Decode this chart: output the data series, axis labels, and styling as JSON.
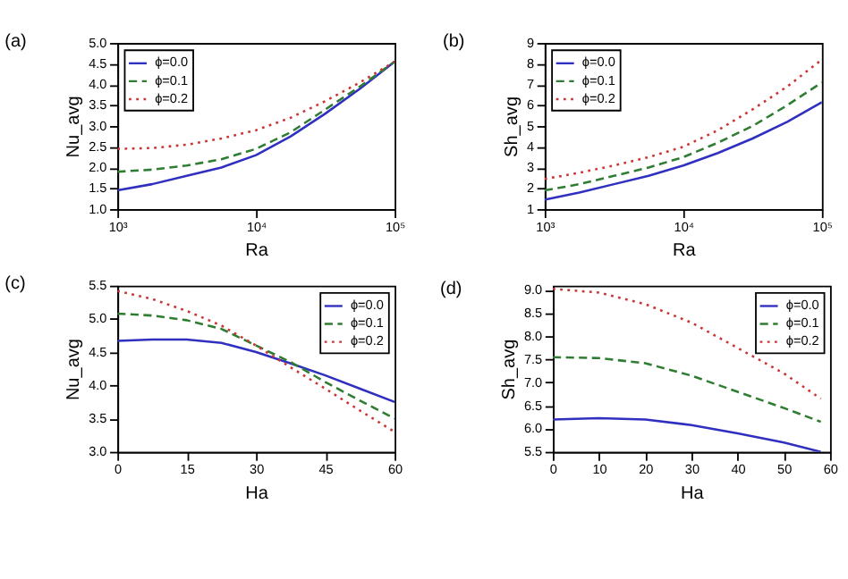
{
  "chart_data": [
    {
      "type": "line",
      "title": "(a)",
      "xlabel": "Ra",
      "ylabel": "Nu_avg",
      "log": "x",
      "xlim": [
        1000,
        100000
      ],
      "xticks": [
        {
          "value": 1000,
          "label": "10³"
        },
        {
          "value": 10000,
          "label": "10⁴"
        },
        {
          "value": 100000,
          "label": "10⁵"
        }
      ],
      "ylim": [
        1.0,
        5.0
      ],
      "yticks": [
        {
          "value": 1,
          "label": "1.0"
        },
        1.5,
        {
          "value": 2,
          "label": "2.0"
        },
        2.5,
        {
          "value": 3,
          "label": "3.0"
        },
        3.5,
        {
          "value": 4,
          "label": "4.0"
        },
        4.5,
        {
          "value": 5,
          "label": "5.0"
        }
      ],
      "legend": "top left",
      "grid": false,
      "x": [
        1000,
        1778,
        3162,
        5623,
        10000,
        17783,
        31623,
        56234,
        100000
      ],
      "series": [
        {
          "name": "ϕ=0.0",
          "color": "#3030c0",
          "line_style": "solid",
          "values": [
            1.45,
            1.6,
            1.8,
            2.0,
            2.3,
            2.75,
            3.3,
            3.9,
            4.55
          ]
        },
        {
          "name": "ϕ=0.1",
          "color": "#2e7d32",
          "line_style": "dashed",
          "values": [
            1.9,
            1.95,
            2.05,
            2.2,
            2.45,
            2.85,
            3.4,
            3.95,
            4.55
          ]
        },
        {
          "name": "ϕ=0.2",
          "color": "#cc3333",
          "line_style": "dotted",
          "values": [
            2.45,
            2.47,
            2.55,
            2.7,
            2.9,
            3.2,
            3.6,
            4.05,
            4.55
          ]
        }
      ]
    },
    {
      "type": "line",
      "title": "(b)",
      "xlabel": "Ra",
      "ylabel": "Sh_avg",
      "log": "x",
      "xlim": [
        1000,
        100000
      ],
      "xticks": [
        {
          "value": 1000,
          "label": "10³"
        },
        {
          "value": 10000,
          "label": "10⁴"
        },
        {
          "value": 100000,
          "label": "10⁵"
        }
      ],
      "ylim": [
        1,
        9
      ],
      "yticks": [
        1,
        2,
        3,
        4,
        5,
        6,
        7,
        8,
        9
      ],
      "legend": "top left",
      "grid": false,
      "x": [
        1000,
        1778,
        3162,
        5623,
        10000,
        17783,
        31623,
        56234,
        100000
      ],
      "series": [
        {
          "name": "ϕ=0.0",
          "color": "#3030c0",
          "line_style": "solid",
          "values": [
            1.45,
            1.8,
            2.2,
            2.6,
            3.1,
            3.7,
            4.4,
            5.2,
            6.15
          ]
        },
        {
          "name": "ϕ=0.1",
          "color": "#2e7d32",
          "line_style": "dashed",
          "values": [
            1.9,
            2.2,
            2.6,
            3.0,
            3.5,
            4.2,
            5.0,
            6.0,
            7.1
          ]
        },
        {
          "name": "ϕ=0.2",
          "color": "#cc3333",
          "line_style": "dotted",
          "values": [
            2.45,
            2.75,
            3.1,
            3.5,
            4.0,
            4.8,
            5.8,
            6.9,
            8.2
          ]
        }
      ]
    },
    {
      "type": "line",
      "title": "(c)",
      "xlabel": "Ha",
      "ylabel": "Nu_avg",
      "xlim": [
        0,
        60
      ],
      "xticks": [
        0,
        15,
        30,
        45,
        60
      ],
      "ylim": [
        3.0,
        5.5
      ],
      "yticks": [
        {
          "value": 3,
          "label": "3.0"
        },
        3.5,
        {
          "value": 4,
          "label": "4.0"
        },
        4.5,
        {
          "value": 5,
          "label": "5.0"
        },
        5.5
      ],
      "legend": "top right",
      "grid": false,
      "x": [
        0,
        7.5,
        15,
        22.5,
        30,
        37.5,
        45,
        52.5,
        60
      ],
      "series": [
        {
          "name": "ϕ=0.0",
          "color": "#3030c0",
          "line_style": "solid",
          "values": [
            4.67,
            4.69,
            4.69,
            4.64,
            4.5,
            4.33,
            4.15,
            3.95,
            3.75
          ]
        },
        {
          "name": "ϕ=0.1",
          "color": "#2e7d32",
          "line_style": "dashed",
          "values": [
            5.08,
            5.05,
            4.98,
            4.85,
            4.6,
            4.35,
            4.05,
            3.77,
            3.5
          ]
        },
        {
          "name": "ϕ=0.2",
          "color": "#cc3333",
          "line_style": "dotted",
          "values": [
            5.42,
            5.3,
            5.12,
            4.9,
            4.6,
            4.27,
            3.95,
            3.62,
            3.3
          ]
        }
      ]
    },
    {
      "type": "line",
      "title": "(d)",
      "xlabel": "Ha",
      "ylabel": "Sh_avg",
      "xlim": [
        0,
        60
      ],
      "xticks": [
        0,
        10,
        20,
        30,
        40,
        50,
        60
      ],
      "ylim": [
        5.5,
        9.1
      ],
      "yticks": [
        5.5,
        {
          "value": 6,
          "label": "6.0"
        },
        6.5,
        {
          "value": 7,
          "label": "7.0"
        },
        7.5,
        {
          "value": 8,
          "label": "8.0"
        },
        8.5,
        {
          "value": 9,
          "label": "9.0"
        }
      ],
      "legend": "top right",
      "grid": false,
      "x": [
        0,
        10,
        20,
        30,
        40,
        50,
        58
      ],
      "series": [
        {
          "name": "ϕ=0.0",
          "color": "#3030c0",
          "line_style": "solid",
          "values": [
            6.2,
            6.23,
            6.2,
            6.08,
            5.9,
            5.7,
            5.5
          ]
        },
        {
          "name": "ϕ=0.1",
          "color": "#2e7d32",
          "line_style": "dashed",
          "values": [
            7.55,
            7.53,
            7.42,
            7.15,
            6.8,
            6.45,
            6.15
          ]
        },
        {
          "name": "ϕ=0.2",
          "color": "#cc3333",
          "line_style": "dotted",
          "values": [
            9.03,
            8.95,
            8.7,
            8.3,
            7.75,
            7.2,
            6.65
          ]
        }
      ]
    }
  ]
}
